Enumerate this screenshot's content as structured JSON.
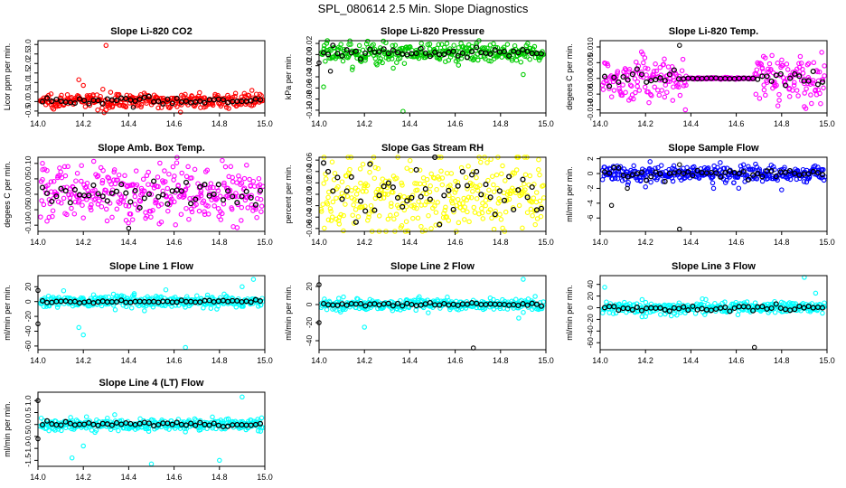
{
  "figure_title": "SPL_080614  2.5 Min. Slope Diagnostics",
  "chart_data": [
    {
      "type": "scatter",
      "title": "Slope Li-820 CO2",
      "ylabel": "Licor ppm per min.",
      "xlim": [
        14.0,
        15.0
      ],
      "ylim": [
        -0.6,
        3.2
      ],
      "xticks": [
        14.0,
        14.2,
        14.4,
        14.6,
        14.8,
        15.0
      ],
      "xtick_labels": [
        "14.0",
        "14.2",
        "14.4",
        "14.6",
        "14.8",
        "15.0"
      ],
      "yticks": [
        -0.5,
        0.0,
        0.5,
        1.0,
        1.5,
        2.0,
        2.5,
        3.0
      ],
      "ytick_labels": [
        "-0.5",
        "0.0",
        "0.5",
        "1.0",
        "1.5",
        "2.0",
        "2.5",
        "3.0"
      ],
      "series_color": "#ff0000",
      "mean_color": "#000000",
      "center": 0.05,
      "spread": 0.18,
      "mean_spread": 0.1,
      "outliers": [
        [
          14.3,
          2.95
        ],
        [
          14.18,
          1.15
        ],
        [
          14.2,
          0.85
        ],
        [
          14.3,
          -0.45
        ],
        [
          14.42,
          -0.3
        ]
      ]
    },
    {
      "type": "scatter",
      "title": "Slope Li-820 Pressure",
      "ylabel": "kPa per min.",
      "xlim": [
        14.0,
        15.0
      ],
      "ylim": [
        -0.105,
        0.025
      ],
      "xticks": [
        14.0,
        14.2,
        14.4,
        14.6,
        14.8,
        15.0
      ],
      "xtick_labels": [
        "14.0",
        "14.2",
        "14.4",
        "14.6",
        "14.8",
        "15.0"
      ],
      "yticks": [
        -0.1,
        -0.08,
        -0.06,
        -0.04,
        -0.02,
        0.0,
        0.02
      ],
      "ytick_labels": [
        "-0.10",
        "-0.08",
        "-0.06",
        "-0.04",
        "-0.02",
        "0.00",
        "0.02"
      ],
      "series_color": "#00cc00",
      "mean_color": "#000000",
      "center": 0.003,
      "spread": 0.01,
      "mean_spread": 0.005,
      "outliers": [
        [
          14.37,
          -0.102
        ],
        [
          14.02,
          -0.058
        ],
        [
          14.9,
          -0.036
        ],
        [
          14.05,
          -0.03
        ],
        [
          14.0,
          -0.015
        ]
      ]
    },
    {
      "type": "scatter",
      "title": "Slope Li-820 Temp.",
      "ylabel": "degees C per min.",
      "xlim": [
        14.0,
        15.0
      ],
      "ylim": [
        -0.011,
        0.012
      ],
      "xticks": [
        14.0,
        14.2,
        14.4,
        14.6,
        14.8,
        15.0
      ],
      "xtick_labels": [
        "14.0",
        "14.2",
        "14.4",
        "14.6",
        "14.8",
        "15.0"
      ],
      "yticks": [
        -0.01,
        -0.005,
        0.0,
        0.005,
        0.01
      ],
      "ytick_labels": [
        "-0.010",
        "-0.005",
        "0.000",
        "0.005",
        "0.010"
      ],
      "series_color": "#ff00ff",
      "mean_color": "#000000",
      "center": 0.0,
      "spread": 0.0035,
      "mean_spread": 0.0015,
      "flat_range": [
        14.38,
        14.68
      ],
      "outliers": [
        [
          14.35,
          0.0105
        ],
        [
          14.32,
          -0.007
        ],
        [
          14.9,
          -0.009
        ],
        [
          14.72,
          0.007
        ]
      ]
    },
    {
      "type": "scatter",
      "title": "Slope Amb. Box Temp.",
      "ylabel": "degees C per min.",
      "xlim": [
        14.0,
        15.0
      ],
      "ylim": [
        -0.12,
        0.12
      ],
      "xticks": [
        14.0,
        14.2,
        14.4,
        14.6,
        14.8,
        15.0
      ],
      "xtick_labels": [
        "14.0",
        "14.2",
        "14.4",
        "14.6",
        "14.8",
        "15.0"
      ],
      "yticks": [
        -0.1,
        -0.05,
        0.0,
        0.05,
        0.1
      ],
      "ytick_labels": [
        "-0.10",
        "-0.05",
        "0.00",
        "0.05",
        "0.10"
      ],
      "series_color": "#ff00ff",
      "mean_color": "#000000",
      "center": 0.0,
      "spread": 0.045,
      "mean_spread": 0.02,
      "outliers": [
        [
          14.02,
          0.1
        ],
        [
          14.4,
          -0.11
        ],
        [
          14.85,
          0.09
        ]
      ]
    },
    {
      "type": "scatter",
      "title": "Slope Gas Stream RH",
      "ylabel": "percent per min.",
      "xlim": [
        14.0,
        15.0
      ],
      "ylim": [
        -0.065,
        0.065
      ],
      "xticks": [
        14.0,
        14.2,
        14.4,
        14.6,
        14.8,
        15.0
      ],
      "xtick_labels": [
        "14.0",
        "14.2",
        "14.4",
        "14.6",
        "14.8",
        "15.0"
      ],
      "yticks": [
        -0.06,
        -0.04,
        -0.02,
        0.0,
        0.02,
        0.04,
        0.06
      ],
      "ytick_labels": [
        "-0.06",
        "-0.04",
        "-0.02",
        "0.00",
        "0.02",
        "0.04",
        "0.06"
      ],
      "series_color": "#ffff00",
      "mean_color": "#000000",
      "center": 0.0,
      "spread": 0.035,
      "mean_spread": 0.025,
      "outliers": []
    },
    {
      "type": "scatter",
      "title": "Slope Sample Flow",
      "ylabel": "ml/min per min.",
      "xlim": [
        14.0,
        15.0
      ],
      "ylim": [
        -7.8,
        2.2
      ],
      "xticks": [
        14.0,
        14.2,
        14.4,
        14.6,
        14.8,
        15.0
      ],
      "xtick_labels": [
        "14.0",
        "14.2",
        "14.4",
        "14.6",
        "14.8",
        "15.0"
      ],
      "yticks": [
        -6,
        -4,
        -2,
        0,
        2
      ],
      "ytick_labels": [
        "-6",
        "-4",
        "-2",
        "0",
        "2"
      ],
      "series_color": "#0000ff",
      "mean_color": "#000000",
      "center": 0.0,
      "spread": 0.55,
      "mean_spread": 0.3,
      "outliers": [
        [
          14.35,
          -7.5
        ],
        [
          14.05,
          -4.3
        ],
        [
          14.22,
          1.6
        ],
        [
          14.35,
          1.2
        ],
        [
          14.12,
          -2.0
        ],
        [
          14.2,
          -1.8
        ],
        [
          14.5,
          -2.0
        ],
        [
          14.8,
          -2.2
        ]
      ]
    },
    {
      "type": "scatter",
      "title": "Slope Line 1 Flow",
      "ylabel": "ml/min per min.",
      "xlim": [
        14.0,
        15.0
      ],
      "ylim": [
        -65,
        35
      ],
      "xticks": [
        14.0,
        14.2,
        14.4,
        14.6,
        14.8,
        15.0
      ],
      "xtick_labels": [
        "14.0",
        "14.2",
        "14.4",
        "14.6",
        "14.8",
        "15.0"
      ],
      "yticks": [
        -60,
        -40,
        -20,
        0,
        20
      ],
      "ytick_labels": [
        "-60",
        "-40",
        "-20",
        "0",
        "20"
      ],
      "series_color": "#00ffff",
      "mean_color": "#000000",
      "center": 0.0,
      "spread": 4,
      "mean_spread": 1,
      "outliers": [
        [
          14.65,
          -62
        ],
        [
          14.2,
          -45
        ],
        [
          14.18,
          -35
        ],
        [
          14.0,
          -30
        ],
        [
          14.95,
          30
        ],
        [
          14.9,
          20
        ],
        [
          14.0,
          15
        ]
      ]
    },
    {
      "type": "scatter",
      "title": "Slope Line 2 Flow",
      "ylabel": "ml/min per min.",
      "xlim": [
        14.0,
        15.0
      ],
      "ylim": [
        -50,
        32
      ],
      "xticks": [
        14.0,
        14.2,
        14.4,
        14.6,
        14.8,
        15.0
      ],
      "xtick_labels": [
        "14.0",
        "14.2",
        "14.4",
        "14.6",
        "14.8",
        "15.0"
      ],
      "yticks": [
        -40,
        -20,
        0,
        20
      ],
      "ytick_labels": [
        "-40",
        "-20",
        "0",
        "20"
      ],
      "series_color": "#00ffff",
      "mean_color": "#000000",
      "center": 0.0,
      "spread": 3,
      "mean_spread": 1,
      "outliers": [
        [
          14.68,
          -48
        ],
        [
          14.9,
          28
        ],
        [
          14.0,
          22
        ],
        [
          14.2,
          -25
        ],
        [
          14.88,
          -15
        ],
        [
          14.0,
          -20
        ]
      ]
    },
    {
      "type": "scatter",
      "title": "Slope Line 3 Flow",
      "ylabel": "ml/min per min.",
      "xlim": [
        14.0,
        15.0
      ],
      "ylim": [
        -72,
        55
      ],
      "xticks": [
        14.0,
        14.2,
        14.4,
        14.6,
        14.8,
        15.0
      ],
      "xtick_labels": [
        "14.0",
        "14.2",
        "14.4",
        "14.6",
        "14.8",
        "15.0"
      ],
      "yticks": [
        -60,
        -40,
        -20,
        0,
        20,
        40
      ],
      "ytick_labels": [
        "-60",
        "-40",
        "-20",
        "0",
        "20",
        "40"
      ],
      "series_color": "#00ffff",
      "mean_color": "#000000",
      "center": 0.0,
      "spread": 5,
      "mean_spread": 3,
      "outliers": [
        [
          14.68,
          -68
        ],
        [
          14.9,
          52
        ],
        [
          14.02,
          35
        ],
        [
          14.2,
          -15
        ],
        [
          14.95,
          25
        ]
      ]
    },
    {
      "type": "scatter",
      "title": "Slope Line 4 (LT) Flow",
      "ylabel": "ml/min per min.",
      "xlim": [
        14.0,
        15.0
      ],
      "ylim": [
        -1.75,
        1.35
      ],
      "xticks": [
        14.0,
        14.2,
        14.4,
        14.6,
        14.8,
        15.0
      ],
      "xtick_labels": [
        "14.0",
        "14.2",
        "14.4",
        "14.6",
        "14.8",
        "15.0"
      ],
      "yticks": [
        -1.5,
        -1.0,
        -0.5,
        0.0,
        0.5,
        1.0
      ],
      "ytick_labels": [
        "-1.5",
        "-1.0",
        "-0.5",
        "0.0",
        "0.5",
        "1.0"
      ],
      "series_color": "#00ffff",
      "mean_color": "#000000",
      "center": 0.0,
      "spread": 0.12,
      "mean_spread": 0.05,
      "outliers": [
        [
          14.5,
          -1.65
        ],
        [
          14.15,
          -1.4
        ],
        [
          14.0,
          1.0
        ],
        [
          14.9,
          1.15
        ],
        [
          14.0,
          -0.6
        ],
        [
          14.8,
          -1.5
        ],
        [
          14.2,
          -0.9
        ]
      ]
    }
  ]
}
